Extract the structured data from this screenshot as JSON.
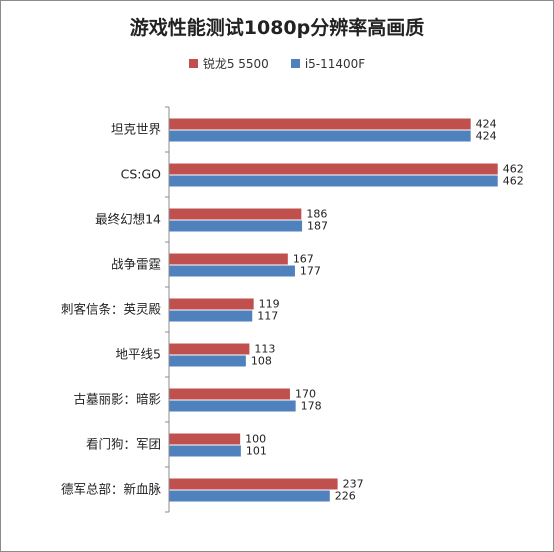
{
  "chart_data": {
    "type": "bar",
    "orientation": "horizontal",
    "title": "游戏性能测试1080p分辨率高画质",
    "categories": [
      "坦克世界",
      "CS:GO",
      "最终幻想14",
      "战争雷霆",
      "刺客信条：英灵殿",
      "地平线5",
      "古墓丽影：暗影",
      "看门狗：军团",
      "德军总部：新血脉"
    ],
    "series": [
      {
        "name": "锐龙5 5500",
        "color": "#c0504d",
        "values": [
          424,
          462,
          186,
          167,
          119,
          113,
          170,
          100,
          237
        ]
      },
      {
        "name": "i5-11400F",
        "color": "#4f81bd",
        "values": [
          424,
          462,
          187,
          177,
          117,
          108,
          178,
          101,
          226
        ]
      }
    ],
    "xlim": [
      0,
      500
    ],
    "grid": false,
    "legend_position": "top"
  }
}
